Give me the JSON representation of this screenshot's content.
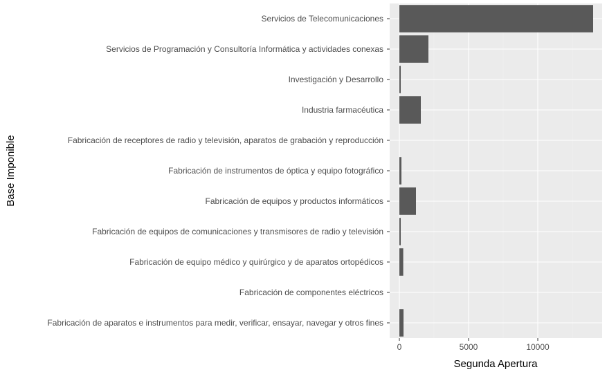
{
  "chart_data": {
    "type": "bar",
    "orientation": "horizontal",
    "xlabel": "Segunda Apertura",
    "ylabel": "Base Imponible",
    "xlim": [
      -700,
      14650
    ],
    "xticks": [
      0,
      5000,
      10000
    ],
    "grid": true,
    "legend": "none",
    "categories": [
      "Servicios de Telecomunicaciones",
      "Servicios de Programación y Consultoría Informática y actividades conexas",
      "Investigación y Desarrollo",
      "Industria farmacéutica",
      "Fabricación de receptores de radio y televisión, aparatos de grabación y reproducción",
      "Fabricación de instrumentos de óptica y equipo fotográfico",
      "Fabricación de equipos y productos informáticos",
      "Fabricación de equipos de comunicaciones y transmisores de radio y televisión",
      "Fabricación de equipo médico y quirúrgico y de aparatos ortopédicos",
      "Fabricación de componentes eléctricos",
      "Fabricación de aparatos e instrumentos para medir, verificar, ensayar, navegar y otros fines"
    ],
    "values": [
      14000,
      2100,
      100,
      1550,
      0,
      150,
      1200,
      100,
      280,
      0,
      300
    ],
    "colors": {
      "bar": "#595959",
      "panel": "#ebebeb",
      "grid_major": "#ffffff",
      "grid_minor": "#f2f2f2",
      "tick_text": "#4d4d4d"
    }
  }
}
